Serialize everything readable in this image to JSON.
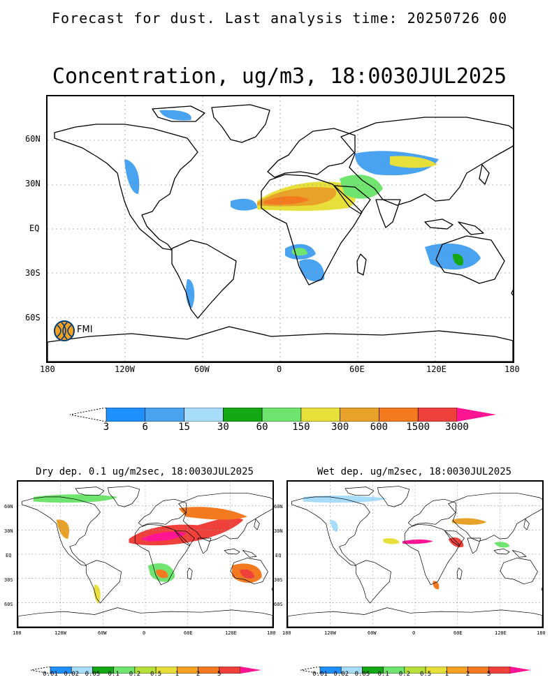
{
  "header": {
    "text": "Forecast for dust. Last analysis time: 20250726 00"
  },
  "main_map": {
    "title": "Concentration, ug/m3, 18:0030JUL2025",
    "lat_labels": [
      "60N",
      "30N",
      "EQ",
      "30S",
      "60S"
    ],
    "lon_labels": [
      "180",
      "120W",
      "60W",
      "0",
      "60E",
      "120E",
      "180"
    ],
    "logo_text": "FMI",
    "colorbar": {
      "labels": [
        "3",
        "6",
        "15",
        "30",
        "60",
        "150",
        "300",
        "600",
        "1500",
        "3000"
      ],
      "colors": [
        "#1e90ff",
        "#4aa3f0",
        "#a7dcfb",
        "#14a814",
        "#6fe56f",
        "#e8e03a",
        "#e8a22a",
        "#f47a20",
        "#f0403c",
        "#ff1493"
      ]
    }
  },
  "dry_map": {
    "title": "Dry dep. 0.1 ug/m2sec, 18:0030JUL2025",
    "lat_labels": [
      "60N",
      "30N",
      "EQ",
      "30S",
      "60S"
    ],
    "lon_labels": [
      "180",
      "120W",
      "60W",
      "0",
      "60E",
      "120E",
      "180"
    ],
    "colorbar": {
      "labels": [
        "0.01",
        "0.02",
        "0.05",
        "0.1",
        "0.2",
        "0.5",
        "1",
        "2",
        "5"
      ],
      "colors": [
        "#1e90ff",
        "#a7dcfb",
        "#14a814",
        "#6fe56f",
        "#b8e03a",
        "#e8e03a",
        "#f4a020",
        "#f47a20",
        "#f0403c",
        "#ff1493"
      ]
    }
  },
  "wet_map": {
    "title": "Wet dep. ug/m2sec, 18:0030JUL2025",
    "lat_labels": [
      "60N",
      "30N",
      "EQ",
      "30S",
      "60S"
    ],
    "lon_labels": [
      "180",
      "120W",
      "60W",
      "0",
      "60E",
      "120E",
      "180"
    ],
    "colorbar": {
      "labels": [
        "0.01",
        "0.02",
        "0.05",
        "0.1",
        "0.2",
        "0.5",
        "1",
        "2",
        "5"
      ],
      "colors": [
        "#1e90ff",
        "#a7dcfb",
        "#14a814",
        "#6fe56f",
        "#b8e03a",
        "#e8e03a",
        "#f4a020",
        "#f47a20",
        "#f0403c",
        "#ff1493"
      ]
    }
  }
}
